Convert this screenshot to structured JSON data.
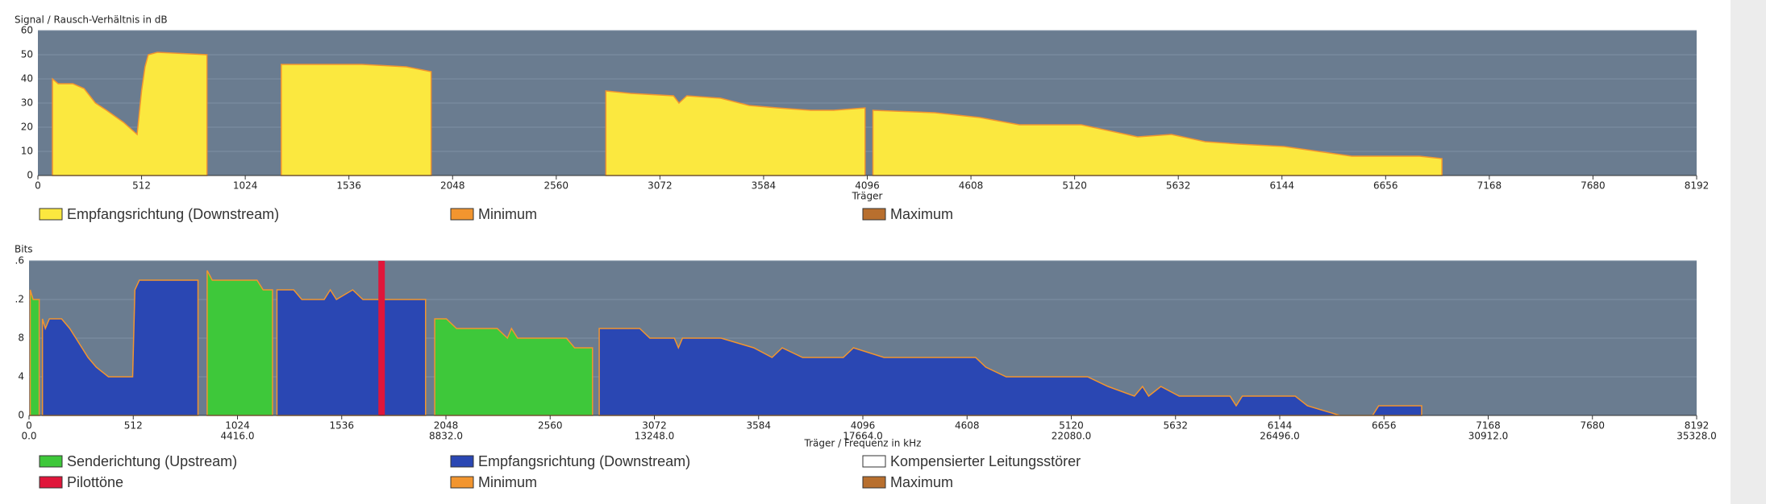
{
  "chart_data": [
    {
      "type": "area",
      "title": "Signal / Rausch-Verhältnis in dB",
      "x_label": "Träger",
      "xlim": [
        0,
        8192
      ],
      "xticks": [
        0,
        512,
        1024,
        1536,
        2048,
        2560,
        3072,
        3584,
        4096,
        4608,
        5120,
        5632,
        6144,
        6656,
        7168,
        7680,
        8192
      ],
      "ylim": [
        0,
        60
      ],
      "yticks": [
        0,
        10,
        20,
        30,
        40,
        50,
        60
      ],
      "grid": true,
      "series": [
        {
          "name": "Empfangsrichtung (Downstream)",
          "color": "#fbe83f",
          "x": [
            72,
            100,
            173,
            228,
            284,
            339,
            423,
            490,
            512,
            529,
            545,
            590,
            835,
            null,
            1202,
            1220,
            1600,
            1820,
            1942,
            null,
            2805,
            2927,
            3139,
            3166,
            3205,
            3372,
            3512,
            3651,
            3818,
            3929,
            4085,
            null,
            4124,
            4430,
            4652,
            4847,
            5153,
            5320,
            5431,
            5598,
            5765,
            5932,
            6155,
            6322,
            6489,
            6823,
            6934
          ],
          "values": [
            40,
            38,
            38,
            36,
            30,
            27,
            22,
            17,
            35,
            45,
            50,
            51,
            50,
            null,
            46,
            46,
            46,
            45,
            43,
            null,
            35,
            34,
            33,
            30,
            33,
            32,
            29,
            28,
            27,
            27,
            28,
            null,
            27,
            26,
            24,
            21,
            21,
            18,
            16,
            17,
            14,
            13,
            12,
            10,
            8,
            8,
            7
          ]
        },
        {
          "name": "Minimum",
          "color": "#f2952f"
        },
        {
          "name": "Maximum",
          "color": "#b86f2e"
        }
      ]
    },
    {
      "type": "area",
      "title": "Bits",
      "x_label": "Träger / Frequenz in kHz",
      "xlim": [
        0,
        8192
      ],
      "xticks": [
        0,
        512,
        1024,
        1536,
        2048,
        2560,
        3072,
        3584,
        4096,
        4608,
        5120,
        5632,
        6144,
        6656,
        7168,
        7680,
        8192
      ],
      "frequency_ticks": [
        {
          "value": 0,
          "label": "0.0"
        },
        {
          "value": 1024,
          "label": "4416.0"
        },
        {
          "value": 2048,
          "label": "8832.0"
        },
        {
          "value": 3072,
          "label": "13248.0"
        },
        {
          "value": 4096,
          "label": "17664.0"
        },
        {
          "value": 5120,
          "label": "22080.0"
        },
        {
          "value": 6144,
          "label": "26496.0"
        },
        {
          "value": 7168,
          "label": "30912.0"
        },
        {
          "value": 8192,
          "label": "35328.0"
        }
      ],
      "ylim": [
        0,
        16
      ],
      "yticks": [
        0,
        4,
        8,
        {
          "value": 12,
          "label": ".2"
        },
        {
          "value": 16,
          "label": ".6"
        }
      ],
      "grid": true,
      "series": [
        {
          "name": "Senderichtung (Upstream)",
          "color": "#3ec83a",
          "x": [
            6,
            20,
            50,
            null,
            875,
            900,
            1120,
            1150,
            1196,
            null,
            1993,
            2050,
            2100,
            2300,
            2350,
            2370,
            2400,
            2640,
            2680,
            2768
          ],
          "values": [
            13,
            12,
            12,
            null,
            15,
            14,
            14,
            13,
            13,
            null,
            10,
            10,
            9,
            9,
            8,
            9,
            8,
            8,
            7,
            7
          ]
        },
        {
          "name": "Empfangsrichtung (Downstream)",
          "color": "#2a47b3",
          "x": [
            66,
            80,
            100,
            160,
            200,
            230,
            260,
            290,
            330,
            390,
            509,
            520,
            542,
            830,
            null,
            1218,
            1300,
            1340,
            1450,
            1480,
            1510,
            1590,
            1640,
            1948,
            null,
            2801,
            3000,
            3050,
            3170,
            3190,
            3210,
            3400,
            3560,
            3650,
            3700,
            3800,
            4000,
            4050,
            4200,
            4650,
            4700,
            4800,
            5200,
            5300,
            5430,
            5470,
            5500,
            5560,
            5650,
            5900,
            5930,
            5960,
            6220,
            6280,
            6440,
            6600,
            6630,
            6841
          ],
          "values": [
            10,
            9,
            10,
            10,
            9,
            8,
            7,
            6,
            5,
            4,
            4,
            13,
            14,
            14,
            null,
            13,
            13,
            12,
            12,
            13,
            12,
            13,
            12,
            12,
            null,
            9,
            9,
            8,
            8,
            7,
            8,
            8,
            7,
            6,
            7,
            6,
            6,
            7,
            6,
            6,
            5,
            4,
            4,
            3,
            2,
            3,
            2,
            3,
            2,
            2,
            1,
            2,
            2,
            1,
            0,
            0,
            1,
            1
          ]
        },
        {
          "name": "Kompensierter Leitungsstörer",
          "color": "#ffffff"
        },
        {
          "name": "Pilottöne",
          "color": "#e0163a",
          "x": [
            1732
          ],
          "values": [
            16
          ]
        },
        {
          "name": "Minimum",
          "color": "#f2952f"
        },
        {
          "name": "Maximum",
          "color": "#b86f2e"
        }
      ]
    }
  ]
}
